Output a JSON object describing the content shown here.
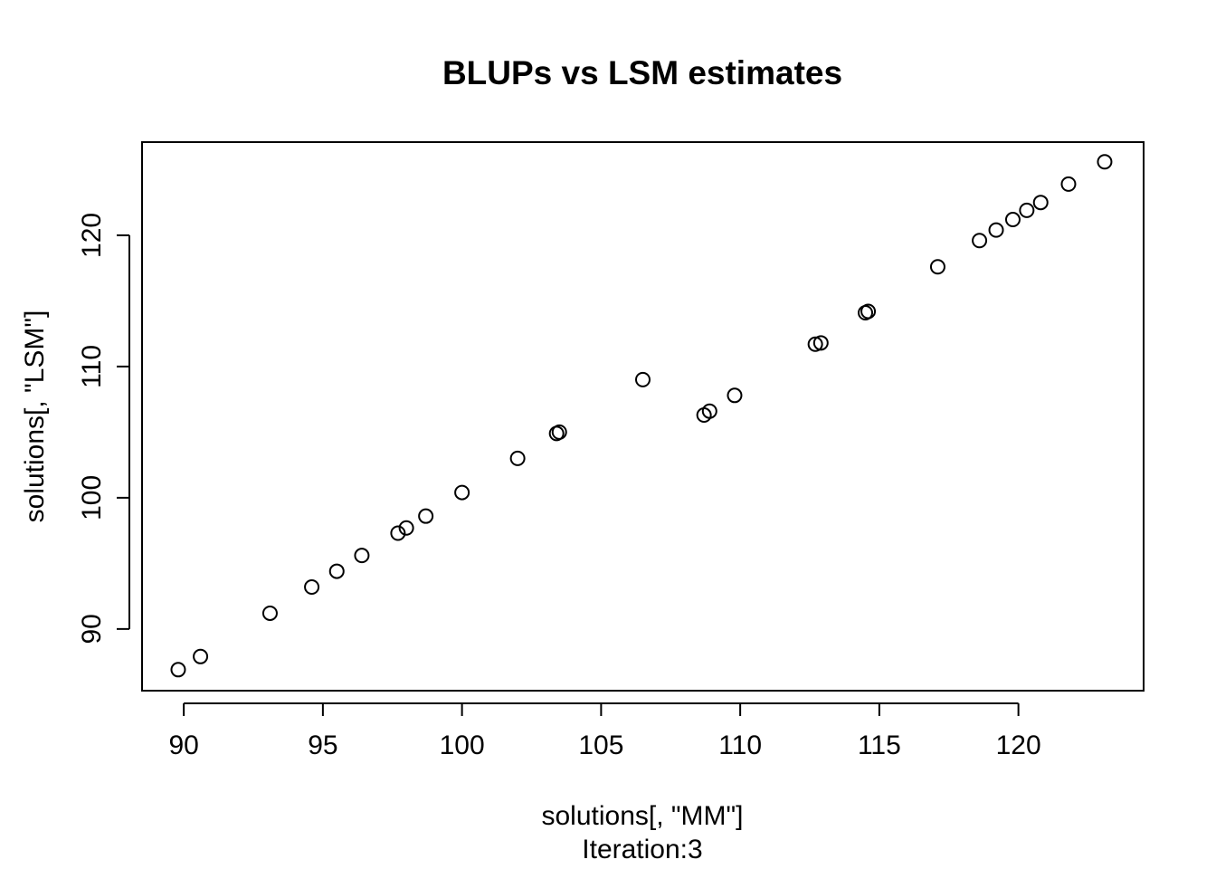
{
  "chart_data": {
    "type": "scatter",
    "title": "BLUPs vs LSM estimates",
    "xlabel": "solutions[, \"MM\"]",
    "ylabel": "solutions[, \"LSM\"]",
    "subtitle": "Iteration:3",
    "xlim": [
      88.5,
      124.5
    ],
    "ylim": [
      85.3,
      127.1
    ],
    "x_ticks": [
      90,
      95,
      100,
      105,
      110,
      115,
      120
    ],
    "y_ticks": [
      90,
      100,
      110,
      120
    ],
    "grid": false,
    "points": [
      {
        "x": 89.8,
        "y": 86.9
      },
      {
        "x": 90.6,
        "y": 87.9
      },
      {
        "x": 93.1,
        "y": 91.2
      },
      {
        "x": 94.6,
        "y": 93.2
      },
      {
        "x": 95.5,
        "y": 94.4
      },
      {
        "x": 96.4,
        "y": 95.6
      },
      {
        "x": 97.7,
        "y": 97.3
      },
      {
        "x": 98.0,
        "y": 97.7
      },
      {
        "x": 98.7,
        "y": 98.6
      },
      {
        "x": 100.0,
        "y": 100.4
      },
      {
        "x": 102.0,
        "y": 103.0
      },
      {
        "x": 103.4,
        "y": 104.9
      },
      {
        "x": 103.5,
        "y": 105.0
      },
      {
        "x": 106.5,
        "y": 109.0
      },
      {
        "x": 108.7,
        "y": 106.3
      },
      {
        "x": 108.9,
        "y": 106.6
      },
      {
        "x": 109.8,
        "y": 107.8
      },
      {
        "x": 112.7,
        "y": 111.7
      },
      {
        "x": 112.9,
        "y": 111.8
      },
      {
        "x": 114.5,
        "y": 114.1
      },
      {
        "x": 114.6,
        "y": 114.2
      },
      {
        "x": 117.1,
        "y": 117.6
      },
      {
        "x": 118.6,
        "y": 119.6
      },
      {
        "x": 119.2,
        "y": 120.4
      },
      {
        "x": 119.8,
        "y": 121.2
      },
      {
        "x": 120.3,
        "y": 121.9
      },
      {
        "x": 120.8,
        "y": 122.5
      },
      {
        "x": 121.8,
        "y": 123.9
      },
      {
        "x": 123.1,
        "y": 125.6
      }
    ]
  }
}
